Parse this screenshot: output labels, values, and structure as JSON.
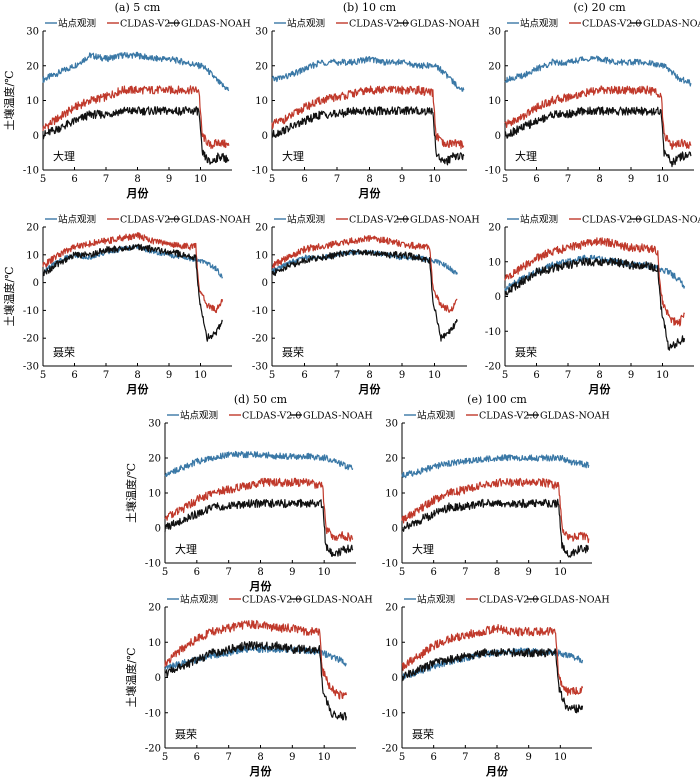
{
  "figure": {
    "colors": {
      "obs": "#3a78a6",
      "cldas": "#c0392b",
      "gldas": "#111111"
    },
    "legend": {
      "obs": "站点观测",
      "cldas": "CLDAS-V2.0",
      "gldas": "GLDAS-NOAH"
    }
  },
  "chart_data": [
    {
      "type": "line",
      "title": "(a) 5 cm",
      "station": "大理",
      "xlabel": "月份",
      "ylabel": "土壤温度/℃",
      "xlim": [
        5,
        11
      ],
      "ylim": [
        -10,
        30
      ],
      "xticks": [
        5,
        6,
        7,
        8,
        9,
        10
      ],
      "yticks": [
        -10,
        0,
        10,
        20,
        30
      ],
      "x": [
        5.0,
        5.5,
        6.0,
        6.5,
        7.0,
        7.5,
        8.0,
        8.5,
        9.0,
        9.5,
        9.95,
        10.05,
        10.3,
        10.6,
        10.9
      ],
      "series": [
        {
          "name": "站点观测",
          "values": [
            16,
            18,
            20,
            23,
            22,
            23,
            23,
            22,
            22,
            21,
            20,
            20,
            18,
            15,
            13
          ]
        },
        {
          "name": "CLDAS-V2.0",
          "values": [
            2,
            5,
            8,
            10,
            11,
            13,
            13,
            13,
            13,
            13,
            13,
            0,
            -3,
            -2,
            -3
          ]
        },
        {
          "name": "GLDAS-NOAH",
          "values": [
            0,
            2,
            4,
            6,
            6,
            7,
            7,
            7,
            7,
            7,
            7,
            -5,
            -8,
            -6,
            -7
          ]
        }
      ]
    },
    {
      "type": "line",
      "title": "(b) 10 cm",
      "station": "大理",
      "xlabel": "月份",
      "ylabel": "",
      "xlim": [
        5,
        11
      ],
      "ylim": [
        -10,
        30
      ],
      "xticks": [
        5,
        6,
        7,
        8,
        9,
        10
      ],
      "yticks": [
        -10,
        0,
        10,
        20,
        30
      ],
      "x": [
        5.0,
        5.5,
        6.0,
        6.5,
        7.0,
        7.5,
        8.0,
        8.5,
        9.0,
        9.5,
        9.95,
        10.05,
        10.3,
        10.6,
        10.9
      ],
      "series": [
        {
          "name": "站点观测",
          "values": [
            16,
            17,
            19,
            21,
            21,
            21,
            22,
            21,
            21,
            20,
            20,
            20,
            18,
            15,
            13
          ]
        },
        {
          "name": "CLDAS-V2.0",
          "values": [
            3,
            5,
            8,
            10,
            11,
            12,
            13,
            13,
            13,
            13,
            12,
            0,
            -3,
            -2,
            -3
          ]
        },
        {
          "name": "GLDAS-NOAH",
          "values": [
            0,
            2,
            4,
            6,
            6,
            7,
            7,
            7,
            7,
            7,
            7,
            -5,
            -8,
            -6,
            -6
          ]
        }
      ]
    },
    {
      "type": "line",
      "title": "(c) 20 cm",
      "station": "大理",
      "xlabel": "",
      "ylabel": "",
      "xlim": [
        5,
        11
      ],
      "ylim": [
        -10,
        30
      ],
      "xticks": [
        5,
        6,
        7,
        8,
        9,
        10
      ],
      "yticks": [
        -10,
        0,
        10,
        20,
        30
      ],
      "x": [
        5.0,
        5.5,
        6.0,
        6.5,
        7.0,
        7.5,
        8.0,
        8.5,
        9.0,
        9.5,
        9.95,
        10.05,
        10.3,
        10.6,
        10.9
      ],
      "series": [
        {
          "name": "站点观测",
          "values": [
            16,
            17,
            19,
            21,
            21,
            22,
            22,
            21,
            21,
            21,
            20,
            20,
            18,
            16,
            15
          ]
        },
        {
          "name": "CLDAS-V2.0",
          "values": [
            3,
            5,
            8,
            10,
            11,
            12,
            13,
            13,
            13,
            13,
            12,
            0,
            -3,
            -2,
            -3
          ]
        },
        {
          "name": "GLDAS-NOAH",
          "values": [
            0,
            2,
            4,
            6,
            6,
            7,
            7,
            7,
            7,
            7,
            7,
            -5,
            -8,
            -6,
            -6
          ]
        }
      ]
    },
    {
      "type": "line",
      "title": "",
      "station": "聂荣",
      "xlabel": "月份",
      "ylabel": "土壤温度/℃",
      "xlim": [
        5,
        11
      ],
      "ylim": [
        -30,
        20
      ],
      "xticks": [
        5,
        6,
        7,
        8,
        9,
        10
      ],
      "yticks": [
        -30,
        -20,
        -10,
        0,
        10,
        20
      ],
      "x": [
        5.0,
        5.5,
        6.0,
        6.5,
        7.0,
        7.5,
        8.0,
        8.5,
        9.0,
        9.5,
        9.85,
        9.95,
        10.2,
        10.5,
        10.7
      ],
      "series": [
        {
          "name": "站点观测",
          "values": [
            4,
            8,
            10,
            9,
            11,
            12,
            13,
            11,
            10,
            9,
            8,
            8,
            7,
            5,
            2
          ]
        },
        {
          "name": "CLDAS-V2.0",
          "values": [
            6,
            10,
            13,
            14,
            15,
            16,
            17,
            15,
            14,
            13,
            13,
            -2,
            -8,
            -10,
            -6
          ]
        },
        {
          "name": "GLDAS-NOAH",
          "values": [
            3,
            7,
            10,
            10,
            12,
            12,
            13,
            12,
            11,
            10,
            9,
            -5,
            -20,
            -18,
            -14
          ]
        }
      ]
    },
    {
      "type": "line",
      "title": "",
      "station": "聂荣",
      "xlabel": "月份",
      "ylabel": "",
      "xlim": [
        5,
        11
      ],
      "ylim": [
        -30,
        20
      ],
      "xticks": [
        5,
        6,
        7,
        8,
        9,
        10
      ],
      "yticks": [
        -30,
        -20,
        -10,
        0,
        10,
        20
      ],
      "x": [
        5.0,
        5.5,
        6.0,
        6.5,
        7.0,
        7.5,
        8.0,
        8.5,
        9.0,
        9.5,
        9.85,
        9.95,
        10.2,
        10.5,
        10.7
      ],
      "series": [
        {
          "name": "站点观测",
          "values": [
            4,
            7,
            9,
            9,
            10,
            11,
            11,
            10,
            9,
            9,
            8,
            8,
            7,
            5,
            3
          ]
        },
        {
          "name": "CLDAS-V2.0",
          "values": [
            6,
            9,
            12,
            13,
            14,
            15,
            16,
            15,
            14,
            13,
            13,
            -2,
            -8,
            -10,
            -6
          ]
        },
        {
          "name": "GLDAS-NOAH",
          "values": [
            3,
            6,
            8,
            9,
            10,
            11,
            11,
            10,
            10,
            9,
            8,
            -6,
            -20,
            -17,
            -14
          ]
        }
      ]
    },
    {
      "type": "line",
      "title": "",
      "station": "聂荣",
      "xlabel": "月份",
      "ylabel": "",
      "xlim": [
        5,
        11
      ],
      "ylim": [
        -20,
        20
      ],
      "xticks": [
        5,
        6,
        7,
        8,
        9,
        10
      ],
      "yticks": [
        -20,
        -10,
        0,
        10,
        20
      ],
      "x": [
        5.0,
        5.5,
        6.0,
        6.5,
        7.0,
        7.5,
        8.0,
        8.5,
        9.0,
        9.5,
        9.85,
        9.95,
        10.2,
        10.5,
        10.7
      ],
      "series": [
        {
          "name": "站点观测",
          "values": [
            2,
            5,
            7,
            9,
            10,
            11,
            11,
            10,
            9,
            9,
            8,
            8,
            7,
            5,
            3
          ]
        },
        {
          "name": "CLDAS-V2.0",
          "values": [
            5,
            8,
            11,
            13,
            14,
            15,
            16,
            15,
            14,
            14,
            13,
            0,
            -6,
            -8,
            -5
          ]
        },
        {
          "name": "GLDAS-NOAH",
          "values": [
            1,
            4,
            7,
            8,
            9,
            10,
            10,
            10,
            9,
            9,
            8,
            -3,
            -15,
            -13,
            -12
          ]
        }
      ]
    },
    {
      "type": "line",
      "title": "(d) 50 cm",
      "station": "大理",
      "xlabel": "月份",
      "ylabel": "土壤温度/℃",
      "xlim": [
        5,
        11
      ],
      "ylim": [
        -10,
        30
      ],
      "xticks": [
        5,
        6,
        7,
        8,
        9,
        10
      ],
      "yticks": [
        -10,
        0,
        10,
        20,
        30
      ],
      "x": [
        5.0,
        5.5,
        6.0,
        6.5,
        7.0,
        7.5,
        8.0,
        8.5,
        9.0,
        9.5,
        9.95,
        10.05,
        10.3,
        10.6,
        10.9
      ],
      "series": [
        {
          "name": "站点观测",
          "values": [
            15.5,
            17,
            19,
            20,
            21,
            21,
            21,
            20.5,
            20.5,
            20.5,
            20,
            20,
            19,
            18,
            17
          ]
        },
        {
          "name": "CLDAS-V2.0",
          "values": [
            3,
            5,
            8,
            10,
            11,
            12,
            13,
            13,
            13,
            13,
            12,
            0,
            -3,
            -2,
            -3
          ]
        },
        {
          "name": "GLDAS-NOAH",
          "values": [
            0,
            2,
            4,
            6,
            6,
            7,
            7,
            7,
            7,
            7,
            7,
            -5,
            -8,
            -6,
            -6
          ]
        }
      ]
    },
    {
      "type": "line",
      "title": "(e) 100 cm",
      "station": "大理",
      "xlabel": "",
      "ylabel": "",
      "xlim": [
        5,
        11
      ],
      "ylim": [
        -10,
        30
      ],
      "xticks": [
        5,
        6,
        7,
        8,
        9,
        10
      ],
      "yticks": [
        -10,
        0,
        10,
        20,
        30
      ],
      "x": [
        5.0,
        5.5,
        6.0,
        6.5,
        7.0,
        7.5,
        8.0,
        8.5,
        9.0,
        9.5,
        9.95,
        10.05,
        10.3,
        10.6,
        10.9
      ],
      "series": [
        {
          "name": "站点观测",
          "values": [
            15,
            16,
            17.5,
            18.5,
            19,
            19.5,
            20,
            20,
            20,
            20,
            20,
            20,
            19,
            18.5,
            18
          ]
        },
        {
          "name": "CLDAS-V2.0",
          "values": [
            2,
            5,
            8,
            10,
            11,
            12,
            13,
            13,
            13,
            13,
            12,
            0,
            -3,
            -2,
            -3
          ]
        },
        {
          "name": "GLDAS-NOAH",
          "values": [
            0,
            2,
            4,
            6,
            6,
            7,
            7,
            7,
            7,
            7,
            7,
            -5,
            -8,
            -6,
            -6
          ]
        }
      ]
    },
    {
      "type": "line",
      "title": "",
      "station": "聂荣",
      "xlabel": "月份",
      "ylabel": "土壤温度/℃",
      "xlim": [
        5,
        11
      ],
      "ylim": [
        -20,
        20
      ],
      "xticks": [
        5,
        6,
        7,
        8,
        9,
        10
      ],
      "yticks": [
        -20,
        -10,
        0,
        10,
        20
      ],
      "x": [
        5.0,
        5.5,
        6.0,
        6.5,
        7.0,
        7.5,
        8.0,
        8.5,
        9.0,
        9.5,
        9.85,
        9.95,
        10.2,
        10.5,
        10.7
      ],
      "series": [
        {
          "name": "站点观测",
          "values": [
            3,
            4,
            5,
            6,
            7,
            8,
            8,
            8,
            8,
            7.5,
            7,
            7,
            6,
            5,
            4
          ]
        },
        {
          "name": "CLDAS-V2.0",
          "values": [
            4,
            8,
            11,
            13,
            14,
            15,
            15,
            14,
            14,
            13,
            13,
            2,
            -3,
            -5,
            -5
          ]
        },
        {
          "name": "GLDAS-NOAH",
          "values": [
            1,
            3,
            5,
            7,
            8,
            9,
            9,
            9,
            8,
            8,
            8,
            -3,
            -10,
            -11,
            -11
          ]
        }
      ]
    },
    {
      "type": "line",
      "title": "",
      "station": "聂荣",
      "xlabel": "月份",
      "ylabel": "",
      "xlim": [
        5,
        11
      ],
      "ylim": [
        -20,
        20
      ],
      "xticks": [
        5,
        6,
        7,
        8,
        9,
        10
      ],
      "yticks": [
        -20,
        -10,
        0,
        10,
        20
      ],
      "x": [
        5.0,
        5.5,
        6.0,
        6.5,
        7.0,
        7.5,
        8.0,
        8.5,
        9.0,
        9.5,
        9.85,
        9.95,
        10.2,
        10.5,
        10.7
      ],
      "series": [
        {
          "name": "站点观测",
          "values": [
            0,
            1.5,
            3,
            4.5,
            5.5,
            6.5,
            7,
            7.5,
            7.5,
            7,
            7,
            7,
            6.5,
            5.5,
            5
          ]
        },
        {
          "name": "CLDAS-V2.0",
          "values": [
            3,
            6,
            9,
            11,
            12,
            13,
            14,
            13,
            13,
            13,
            13,
            0,
            -4,
            -4,
            -3
          ]
        },
        {
          "name": "GLDAS-NOAH",
          "values": [
            0,
            2,
            4,
            5,
            6,
            7,
            7,
            7,
            7,
            7,
            7,
            -3,
            -9,
            -9,
            -8
          ]
        }
      ]
    }
  ]
}
